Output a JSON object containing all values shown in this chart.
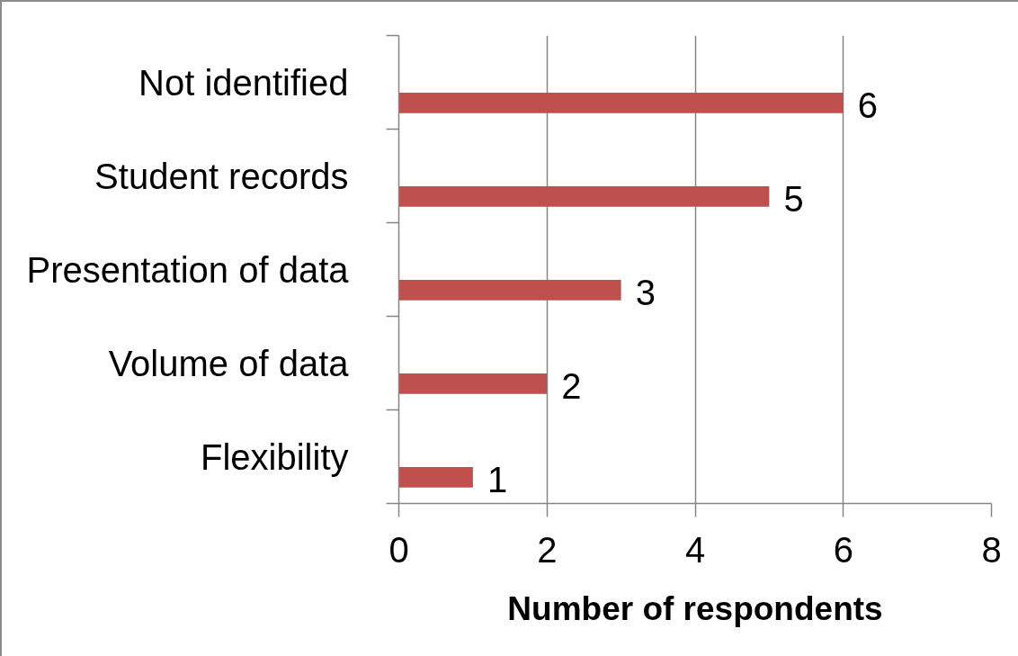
{
  "chart_data": {
    "type": "bar",
    "orientation": "horizontal",
    "categories": [
      "Not identified",
      "Student records",
      "Presentation of data",
      "Volume of data",
      "Flexibility"
    ],
    "values": [
      6,
      5,
      3,
      2,
      1
    ],
    "color": "#c0504d",
    "xlabel": "Number of respondents",
    "xlim": [
      0,
      8
    ],
    "xticks": [
      0,
      2,
      4,
      6,
      8
    ],
    "grid": "x",
    "data_labels": true
  }
}
